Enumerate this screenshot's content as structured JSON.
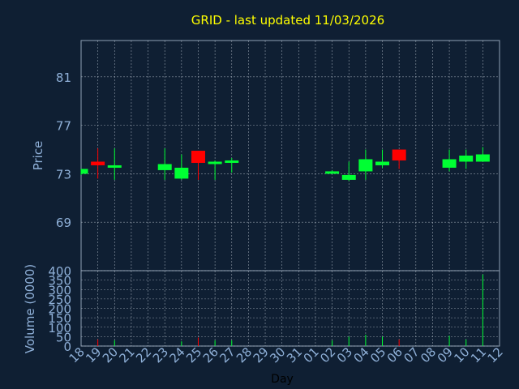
{
  "chart_data": {
    "type": "candlestick",
    "title": "GRID - last updated 11/03/2026",
    "xlabel": "Day",
    "price_panel": {
      "ylabel": "Price",
      "ylim": [
        65,
        84
      ],
      "yticks": [
        "69",
        "73",
        "77",
        "81"
      ],
      "ytick_values": [
        69,
        73,
        77,
        81
      ],
      "grid": true
    },
    "volume_panel": {
      "ylabel": "Volume (0000)",
      "ylim": [
        0,
        400
      ],
      "yticks": [
        "0",
        "50",
        "100",
        "150",
        "200",
        "250",
        "300",
        "350",
        "400"
      ],
      "ytick_values": [
        0,
        50,
        100,
        150,
        200,
        250,
        300,
        350,
        400
      ],
      "grid": true
    },
    "x_tick_labels": [
      "18",
      "19",
      "20",
      "21",
      "22",
      "23",
      "24",
      "25",
      "26",
      "27",
      "28",
      "29",
      "30",
      "31",
      "01",
      "02",
      "03",
      "04",
      "05",
      "06",
      "07",
      "08",
      "09",
      "10",
      "11",
      "12"
    ],
    "candles": [
      {
        "day": "18",
        "open": 73.0,
        "high": 73.4,
        "low": 72.9,
        "close": 73.4,
        "volume": 0
      },
      {
        "day": "19",
        "open": 74.0,
        "high": 75.1,
        "low": 72.6,
        "close": 73.7,
        "volume": 35
      },
      {
        "day": "20",
        "open": 73.5,
        "high": 75.1,
        "low": 72.5,
        "close": 73.7,
        "volume": 30
      },
      {
        "day": "23",
        "open": 73.3,
        "high": 75.1,
        "low": 72.5,
        "close": 73.8,
        "volume": 0
      },
      {
        "day": "24",
        "open": 72.6,
        "high": 74.6,
        "low": 72.5,
        "close": 73.5,
        "volume": 25
      },
      {
        "day": "25",
        "open": 74.9,
        "high": 74.9,
        "low": 72.5,
        "close": 73.9,
        "volume": 45
      },
      {
        "day": "26",
        "open": 73.8,
        "high": 74.1,
        "low": 72.5,
        "close": 74.0,
        "volume": 30
      },
      {
        "day": "27",
        "open": 73.9,
        "high": 74.3,
        "low": 73.1,
        "close": 74.1,
        "volume": 30
      },
      {
        "day": "02",
        "open": 73.0,
        "high": 73.3,
        "low": 73.0,
        "close": 73.2,
        "volume": 30
      },
      {
        "day": "03",
        "open": 72.5,
        "high": 74.0,
        "low": 72.4,
        "close": 72.9,
        "volume": 50
      },
      {
        "day": "04",
        "open": 73.2,
        "high": 75.0,
        "low": 72.5,
        "close": 74.2,
        "volume": 60
      },
      {
        "day": "05",
        "open": 73.7,
        "high": 75.0,
        "low": 73.5,
        "close": 74.0,
        "volume": 50
      },
      {
        "day": "06",
        "open": 75.0,
        "high": 75.0,
        "low": 73.4,
        "close": 74.1,
        "volume": 35
      },
      {
        "day": "09",
        "open": 73.5,
        "high": 75.0,
        "low": 73.2,
        "close": 74.2,
        "volume": 55
      },
      {
        "day": "10",
        "open": 74.0,
        "high": 75.0,
        "low": 73.4,
        "close": 74.5,
        "volume": 35
      },
      {
        "day": "11",
        "open": 74.0,
        "high": 75.2,
        "low": 74.0,
        "close": 74.6,
        "volume": 380
      }
    ],
    "colors": {
      "background": "#0f1f33",
      "up": "#00ff33",
      "down": "#ff0000",
      "title": "#ffff00",
      "axis_text": "#8fb0d8",
      "frame": "#8fa0b4",
      "grid": "#c8d2dc",
      "xlabel": "#000000"
    }
  }
}
